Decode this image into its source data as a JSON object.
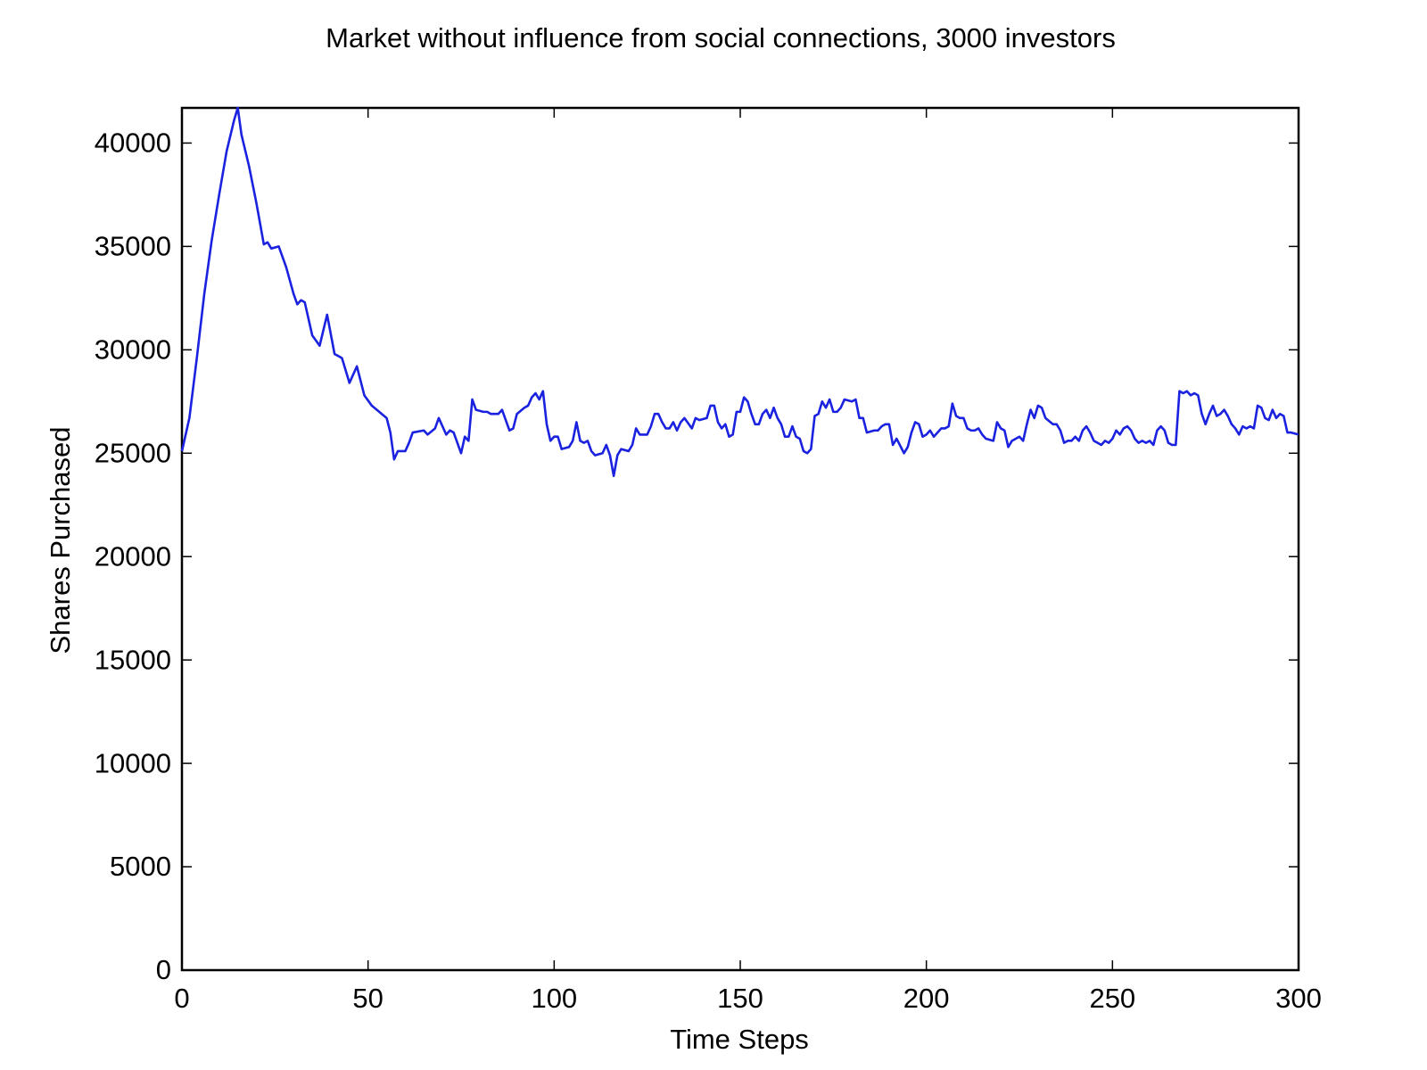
{
  "chart_data": {
    "type": "line",
    "title": "Market without influence from social connections, 3000 investors",
    "xlabel": "Time Steps",
    "ylabel": "Shares Purchased",
    "color": "#1a22e0",
    "xlim": [
      0,
      300
    ],
    "ylim": [
      0,
      41700
    ],
    "xticks": [
      0,
      50,
      100,
      150,
      200,
      250,
      300
    ],
    "yticks": [
      0,
      5000,
      10000,
      15000,
      20000,
      25000,
      30000,
      35000,
      40000
    ],
    "grid": false,
    "x": [
      0,
      2,
      4,
      6,
      8,
      10,
      12,
      14,
      15,
      16,
      18,
      20,
      22,
      23,
      24,
      26,
      28,
      30,
      31,
      32,
      33,
      35,
      37,
      39,
      41,
      43,
      45,
      47,
      49,
      51,
      53,
      55,
      56,
      57,
      58,
      60,
      61,
      62,
      65,
      66,
      68,
      69,
      71,
      72,
      73,
      75,
      76,
      77,
      78,
      79,
      81,
      82,
      83,
      85,
      86,
      88,
      89,
      90,
      92,
      93,
      94,
      95,
      96,
      97,
      98,
      99,
      100,
      101,
      102,
      104,
      105,
      106,
      107,
      108,
      109,
      110,
      111,
      113,
      114,
      115,
      116,
      117,
      118,
      120,
      121,
      122,
      123,
      125,
      126,
      127,
      128,
      129,
      130,
      131,
      132,
      133,
      134,
      135,
      137,
      138,
      139,
      141,
      142,
      143,
      144,
      145,
      146,
      147,
      148,
      149,
      150,
      151,
      152,
      153,
      154,
      155,
      156,
      157,
      158,
      159,
      160,
      161,
      162,
      163,
      164,
      165,
      166,
      167,
      168,
      169,
      170,
      171,
      172,
      173,
      174,
      175,
      176,
      177,
      178,
      180,
      181,
      182,
      183,
      184,
      186,
      187,
      188,
      189,
      190,
      191,
      192,
      194,
      195,
      196,
      197,
      198,
      199,
      200,
      201,
      202,
      204,
      205,
      206,
      207,
      208,
      209,
      210,
      211,
      212,
      213,
      214,
      215,
      216,
      218,
      219,
      220,
      221,
      222,
      223,
      225,
      226,
      227,
      228,
      229,
      230,
      231,
      232,
      234,
      235,
      236,
      237,
      238,
      239,
      240,
      241,
      242,
      243,
      244,
      245,
      246,
      247,
      248,
      249,
      250,
      251,
      252,
      253,
      254,
      255,
      256,
      257,
      258,
      259,
      260,
      261,
      262,
      263,
      264,
      265,
      266,
      267,
      268,
      269,
      270,
      271,
      272,
      273,
      274,
      275,
      276,
      277,
      278,
      279,
      280,
      281,
      282,
      283,
      284,
      285,
      286,
      287,
      288,
      289,
      290,
      291,
      292,
      293,
      294,
      295,
      296,
      297,
      298,
      300
    ],
    "values": [
      25100,
      26700,
      29600,
      32700,
      35300,
      37500,
      39600,
      41100,
      41700,
      40400,
      38900,
      37100,
      35100,
      35200,
      34900,
      35000,
      34000,
      32700,
      32200,
      32400,
      32300,
      30700,
      30200,
      31700,
      29800,
      29600,
      28400,
      29200,
      27800,
      27300,
      27000,
      26700,
      26000,
      24700,
      25100,
      25100,
      25500,
      26000,
      26100,
      25900,
      26200,
      26700,
      25900,
      26100,
      26000,
      25000,
      25800,
      25600,
      27600,
      27100,
      27000,
      27000,
      26900,
      26900,
      27100,
      26100,
      26200,
      26900,
      27200,
      27300,
      27700,
      27900,
      27600,
      28000,
      26400,
      25600,
      25800,
      25800,
      25200,
      25300,
      25600,
      26500,
      25600,
      25500,
      25600,
      25100,
      24900,
      25000,
      25400,
      24900,
      23900,
      24900,
      25200,
      25100,
      25400,
      26200,
      25900,
      25900,
      26300,
      26900,
      26900,
      26500,
      26200,
      26200,
      26500,
      26100,
      26500,
      26700,
      26200,
      26700,
      26600,
      26700,
      27300,
      27300,
      26500,
      26200,
      26400,
      25800,
      25900,
      27000,
      27000,
      27700,
      27500,
      26900,
      26400,
      26400,
      26900,
      27100,
      26700,
      27200,
      26700,
      26400,
      25800,
      25800,
      26300,
      25800,
      25700,
      25100,
      25000,
      25200,
      26800,
      26900,
      27500,
      27200,
      27600,
      27000,
      27000,
      27200,
      27600,
      27500,
      27600,
      26700,
      26700,
      26000,
      26100,
      26100,
      26300,
      26400,
      26400,
      25400,
      25700,
      25000,
      25300,
      26000,
      26500,
      26400,
      25800,
      25900,
      26100,
      25800,
      26200,
      26200,
      26300,
      27400,
      26800,
      26700,
      26700,
      26200,
      26100,
      26100,
      26200,
      25900,
      25700,
      25600,
      26500,
      26200,
      26100,
      25300,
      25600,
      25800,
      25600,
      26400,
      27100,
      26700,
      27300,
      27200,
      26700,
      26400,
      26400,
      26100,
      25500,
      25600,
      25600,
      25800,
      25600,
      26100,
      26300,
      26000,
      25600,
      25500,
      25400,
      25600,
      25500,
      25700,
      26100,
      25900,
      26200,
      26300,
      26100,
      25700,
      25500,
      25600,
      25500,
      25600,
      25400,
      26100,
      26300,
      26100,
      25500,
      25400,
      25400,
      28000,
      27900,
      28000,
      27800,
      27900,
      27800,
      26900,
      26400,
      26900,
      27300,
      26800,
      26900,
      27100,
      26800,
      26400,
      26200,
      25900,
      26300,
      26200,
      26300,
      26200,
      27300,
      27200,
      26700,
      26600,
      27100,
      26700,
      26900,
      26800,
      26000,
      26000,
      25900
    ]
  }
}
